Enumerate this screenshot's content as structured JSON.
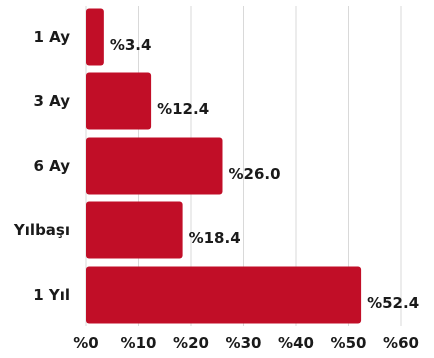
{
  "chart_data": {
    "type": "bar",
    "orientation": "horizontal",
    "categories": [
      "1 Ay",
      "3 Ay",
      "6 Ay",
      "Yılbaşı",
      "1 Yıl"
    ],
    "values": [
      3.4,
      12.4,
      26.0,
      18.4,
      52.4
    ],
    "value_labels": [
      "%3.4",
      "%12.4",
      "%26.0",
      "%18.4",
      "%52.4"
    ],
    "xlim": [
      0,
      60
    ],
    "x_ticks": [
      0,
      10,
      20,
      30,
      40,
      50,
      60
    ],
    "x_tick_labels": [
      "%0",
      "%10",
      "%20",
      "%30",
      "%40",
      "%50",
      "%60"
    ],
    "grid": true,
    "bar_color": "#c10e27",
    "title": "",
    "xlabel": "",
    "ylabel": ""
  }
}
